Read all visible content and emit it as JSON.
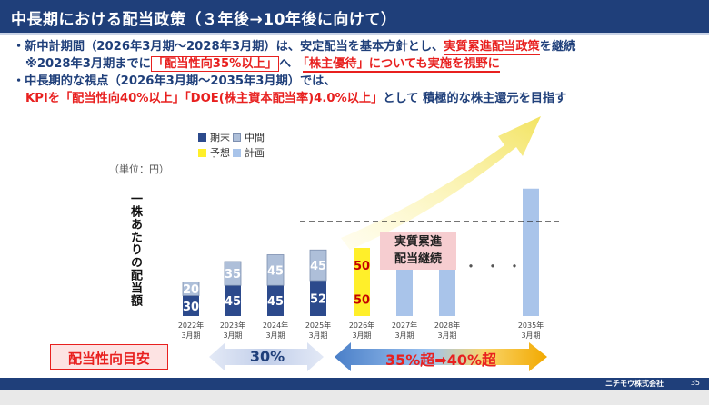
{
  "slide": {
    "title": "中長期における配当政策（３年後→10年後に向けて）",
    "bullets": {
      "b1_a": "・新中計期間（2026年3月期～2028年3月期）は、安定配当を基本方針とし、",
      "b1_b": "実質累進配当政策",
      "b1_c": "を継続",
      "b2_a": "※2028年3月期までに",
      "b2_b": "「配当性向35%以上」",
      "b2_c": "へ　",
      "b2_d": "「株主優待」についても実施を視野に",
      "b3": "・中長期的な視点（2026年3月期～2035年3月期）では、",
      "b4_a": "KPIを「配当性向40%以上」「DOE(株主資本配当率)4.0%以上」",
      "b4_b": "として 積極的な株主還元を目指す"
    },
    "unit": "（単位：円）",
    "vertical_label": "一株あたりの配当額",
    "legend": {
      "period_end": "期末",
      "interim": "中間",
      "forecast": "予想",
      "plan": "計画"
    },
    "pink_box_line1": "実質累進",
    "pink_box_line2": "配当継続",
    "dots": "・・・",
    "payout_label": "配当性向目安",
    "arrow_left_text": "30%",
    "arrow_right_text": "35%超➡40%超",
    "footer_company": "ニチモウ株式会社",
    "footer_page": "35",
    "colors": {
      "navy": "#1f3f7a",
      "period_end_bar": "#2c4a8c",
      "interim_bar": "#aebfd9",
      "forecast_bar": "#ffef2a",
      "plan_bar": "#a9c4ea",
      "accent_red": "#e8201f"
    }
  },
  "chart_data": {
    "type": "bar",
    "categories": [
      "2022年\n3月期",
      "2023年\n3月期",
      "2024年\n3月期",
      "2025年\n3月期",
      "2026年\n3月期",
      "2027年\n3月期",
      "2028年\n3月期",
      "2035年\n3月期"
    ],
    "category_lines": [
      [
        "2022年",
        "3月期"
      ],
      [
        "2023年",
        "3月期"
      ],
      [
        "2024年",
        "3月期"
      ],
      [
        "2025年",
        "3月期"
      ],
      [
        "2026年",
        "3月期"
      ],
      [
        "2027年",
        "3月期"
      ],
      [
        "2028年",
        "3月期"
      ],
      [
        "2035年",
        "3月期"
      ]
    ],
    "series": [
      {
        "name": "期末",
        "values": [
          30,
          45,
          45,
          52,
          null,
          null,
          null,
          null
        ]
      },
      {
        "name": "中間",
        "values": [
          20,
          35,
          45,
          45,
          null,
          null,
          null,
          null
        ]
      },
      {
        "name": "予想",
        "values": [
          null,
          null,
          null,
          null,
          50,
          null,
          null,
          null
        ]
      },
      {
        "name": "予想",
        "values": [
          null,
          null,
          null,
          null,
          50,
          null,
          null,
          null
        ]
      },
      {
        "name": "計画",
        "values": [
          null,
          null,
          null,
          null,
          null,
          112,
          115,
          187
        ]
      }
    ],
    "value_labels": {
      "period_end": [
        "30",
        "45",
        "45",
        "52"
      ],
      "interim": [
        "20",
        "35",
        "45",
        "45"
      ],
      "forecast": [
        "50",
        "50"
      ]
    },
    "reference_line": 97,
    "ylim": [
      0,
      190
    ],
    "grid": false,
    "legend": "top"
  }
}
